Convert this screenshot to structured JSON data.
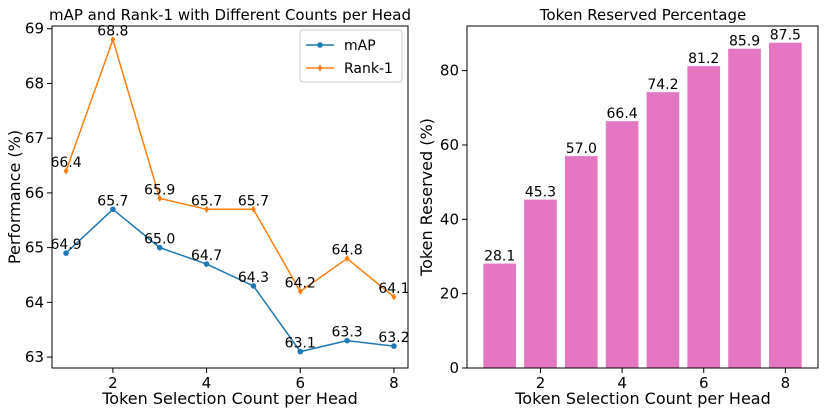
{
  "chart_data": [
    {
      "type": "line",
      "title": "mAP and Rank-1 with Different Counts per Head",
      "xlabel": "Token Selection Count per Head",
      "ylabel": "Performance (%)",
      "x": [
        1,
        2,
        3,
        4,
        5,
        6,
        7,
        8
      ],
      "xlim": [
        0.7,
        8.3
      ],
      "ylim": [
        62.8,
        69.05
      ],
      "xticks": [
        2,
        4,
        6,
        8
      ],
      "yticks": [
        63,
        64,
        65,
        66,
        67,
        68,
        69
      ],
      "grid": false,
      "legend_position": "top-right",
      "series": [
        {
          "name": "mAP",
          "marker": "circle",
          "color": "#1f77b4",
          "values": [
            64.9,
            65.7,
            65.0,
            64.7,
            64.3,
            63.1,
            63.3,
            63.2
          ],
          "labels": [
            "64.9",
            "65.7",
            "65.0",
            "64.7",
            "64.3",
            "63.1",
            "63.3",
            "63.2"
          ]
        },
        {
          "name": "Rank-1",
          "marker": "diamond",
          "color": "#ff7f0e",
          "values": [
            66.4,
            68.8,
            65.9,
            65.7,
            65.7,
            64.2,
            64.8,
            64.1
          ],
          "labels": [
            "66.4",
            "68.8",
            "65.9",
            "65.7",
            "65.7",
            "64.2",
            "64.8",
            "64.1"
          ]
        }
      ]
    },
    {
      "type": "bar",
      "title": "Token Reserved Percentage",
      "xlabel": "Token Selection Count per Head",
      "ylabel": "Token Reserved (%)",
      "x": [
        1,
        2,
        3,
        4,
        5,
        6,
        7,
        8
      ],
      "values": [
        28.1,
        45.3,
        57.0,
        66.4,
        74.2,
        81.2,
        85.9,
        87.5
      ],
      "labels": [
        "28.1",
        "45.3",
        "57.0",
        "66.4",
        "74.2",
        "81.2",
        "85.9",
        "87.5"
      ],
      "color": "#e377c2",
      "xlim": [
        0.2,
        8.8
      ],
      "ylim": [
        0,
        92
      ],
      "xticks": [
        2,
        4,
        6,
        8
      ],
      "yticks": [
        0,
        20,
        40,
        60,
        80
      ],
      "grid": false
    }
  ]
}
